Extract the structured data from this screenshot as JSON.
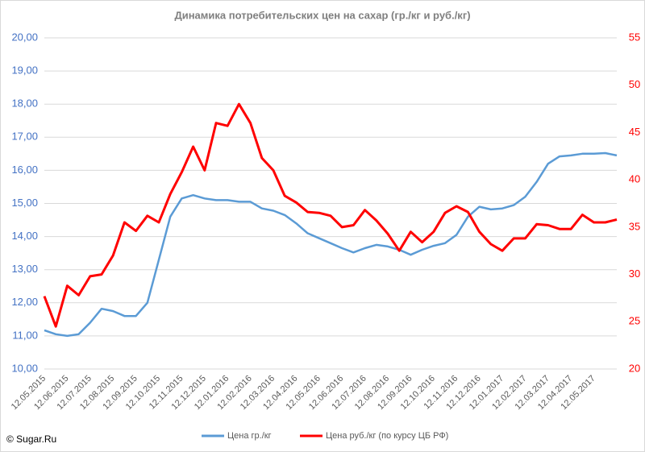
{
  "chart_data": {
    "type": "line",
    "title": "Динамика потребительских цен на сахар (гр./кг и руб./кг)",
    "copyright": "© Sugar.Ru",
    "categories": [
      "12.05.2015",
      null,
      "12.06.2015",
      null,
      "12.07.2015",
      null,
      "12.08.2015",
      null,
      "12.09.2015",
      null,
      "12.10.2015",
      null,
      "12.11.2015",
      null,
      "12.12.2015",
      null,
      "12.01.2016",
      null,
      "12.02.2016",
      null,
      "12.03.2016",
      null,
      "12.04.2016",
      null,
      "12.05.2016",
      null,
      "12.06.2016",
      null,
      "12.07.2016",
      null,
      "12.08.2016",
      null,
      "12.09.2016",
      null,
      "12.10.2016",
      null,
      "12.11.2016",
      null,
      "12.12.2016",
      null,
      "12.01.2017",
      null,
      "12.02.2017",
      null,
      "12.03.2017",
      null,
      "12.04.2017",
      null,
      "12.05.2017",
      null,
      null
    ],
    "series": [
      {
        "name": "Цена гр./кг",
        "color": "#5b9bd5",
        "axis": "y",
        "values": [
          11.17,
          11.05,
          11.0,
          11.05,
          11.4,
          11.82,
          11.75,
          11.6,
          11.6,
          12.0,
          13.3,
          14.6,
          15.15,
          15.25,
          15.15,
          15.1,
          15.1,
          15.05,
          15.05,
          14.85,
          14.78,
          14.65,
          14.4,
          14.1,
          13.95,
          13.8,
          13.65,
          13.52,
          13.65,
          13.75,
          13.7,
          13.6,
          13.45,
          13.6,
          13.72,
          13.8,
          14.05,
          14.6,
          14.9,
          14.82,
          14.85,
          14.95,
          15.2,
          15.65,
          16.2,
          16.42,
          16.45,
          16.5,
          16.5,
          16.52,
          16.45
        ]
      },
      {
        "name": "Цена руб./кг (по курсу ЦБ РФ)",
        "color": "#ff0000",
        "axis": "y2",
        "values": [
          27.7,
          24.5,
          28.8,
          27.8,
          29.8,
          30.0,
          32.0,
          35.5,
          34.6,
          36.2,
          35.5,
          38.5,
          40.8,
          43.5,
          41.0,
          46.0,
          45.7,
          48.0,
          46.0,
          42.3,
          41.0,
          38.3,
          37.6,
          36.6,
          36.5,
          36.2,
          35.0,
          35.2,
          36.8,
          35.7,
          34.3,
          32.5,
          34.5,
          33.4,
          34.5,
          36.5,
          37.2,
          36.6,
          34.5,
          33.2,
          32.5,
          33.8,
          33.8,
          35.3,
          35.2,
          34.8,
          34.8,
          36.3,
          35.5,
          35.5,
          35.8
        ]
      }
    ],
    "ylim": [
      10,
      20
    ],
    "yticks": [
      {
        "value": 10,
        "label": "10,00"
      },
      {
        "value": 11,
        "label": "11,00"
      },
      {
        "value": 12,
        "label": "12,00"
      },
      {
        "value": 13,
        "label": "13,00"
      },
      {
        "value": 14,
        "label": "14,00"
      },
      {
        "value": 15,
        "label": "15,00"
      },
      {
        "value": 16,
        "label": "16,00"
      },
      {
        "value": 17,
        "label": "17,00"
      },
      {
        "value": 18,
        "label": "18,00"
      },
      {
        "value": 19,
        "label": "19,00"
      },
      {
        "value": 20,
        "label": "20,00"
      }
    ],
    "y2lim": [
      20,
      55
    ],
    "y2ticks": [
      20,
      25,
      30,
      35,
      40,
      45,
      50,
      55
    ],
    "grid": true,
    "legend": "bottom"
  }
}
